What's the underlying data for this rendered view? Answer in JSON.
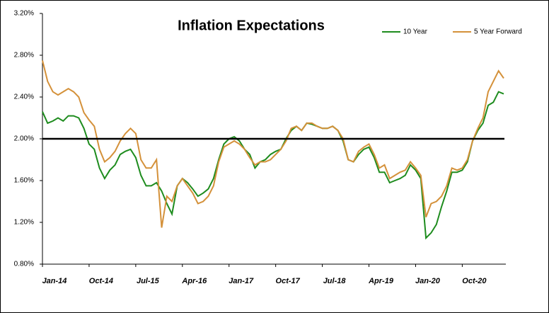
{
  "chart_data": {
    "type": "line",
    "title": "Inflation  Expectations",
    "categories": [
      "Jan-14",
      null,
      null,
      null,
      null,
      null,
      null,
      null,
      null,
      "Oct-14",
      null,
      null,
      null,
      null,
      null,
      null,
      null,
      null,
      "Jul-15",
      null,
      null,
      null,
      null,
      null,
      null,
      null,
      null,
      "Apr-16",
      null,
      null,
      null,
      null,
      null,
      null,
      null,
      null,
      "Jan-17",
      null,
      null,
      null,
      null,
      null,
      null,
      null,
      null,
      "Oct-17",
      null,
      null,
      null,
      null,
      null,
      null,
      null,
      null,
      "Jul-18",
      null,
      null,
      null,
      null,
      null,
      null,
      null,
      null,
      "Apr-19",
      null,
      null,
      null,
      null,
      null,
      null,
      null,
      null,
      "Jan-20",
      null,
      null,
      null,
      null,
      null,
      null,
      null,
      null,
      "Oct-20",
      null,
      null,
      null,
      null,
      null,
      null,
      null,
      null
    ],
    "series": [
      {
        "name": "10 Year",
        "color": "#1e8c1e",
        "values": [
          2.26,
          2.15,
          2.17,
          2.2,
          2.17,
          2.22,
          2.22,
          2.2,
          2.1,
          1.95,
          1.9,
          1.72,
          1.62,
          1.7,
          1.75,
          1.85,
          1.88,
          1.9,
          1.82,
          1.65,
          1.55,
          1.55,
          1.58,
          1.5,
          1.38,
          1.28,
          1.55,
          1.62,
          1.58,
          1.52,
          1.45,
          1.48,
          1.52,
          1.62,
          1.8,
          1.95,
          2.0,
          2.02,
          1.98,
          1.9,
          1.85,
          1.72,
          1.78,
          1.8,
          1.85,
          1.88,
          1.9,
          2.0,
          2.08,
          2.12,
          2.08,
          2.15,
          2.14,
          2.12,
          2.1,
          2.1,
          2.12,
          2.08,
          1.98,
          1.8,
          1.78,
          1.85,
          1.9,
          1.92,
          1.82,
          1.68,
          1.68,
          1.58,
          1.6,
          1.62,
          1.65,
          1.75,
          1.7,
          1.62,
          1.05,
          1.1,
          1.18,
          1.35,
          1.5,
          1.68,
          1.68,
          1.7,
          1.78,
          1.98,
          2.08,
          2.15,
          2.32,
          2.35,
          2.45,
          2.43
        ]
      },
      {
        "name": "5 Year Forward",
        "color": "#d4913a",
        "values": [
          2.75,
          2.55,
          2.45,
          2.42,
          2.45,
          2.48,
          2.45,
          2.4,
          2.25,
          2.18,
          2.12,
          1.9,
          1.78,
          1.82,
          1.88,
          1.98,
          2.05,
          2.1,
          2.05,
          1.8,
          1.72,
          1.72,
          1.8,
          1.15,
          1.45,
          1.4,
          1.55,
          1.62,
          1.55,
          1.48,
          1.38,
          1.4,
          1.45,
          1.55,
          1.78,
          1.92,
          1.95,
          1.98,
          1.95,
          1.9,
          1.82,
          1.75,
          1.78,
          1.78,
          1.8,
          1.85,
          1.9,
          1.98,
          2.1,
          2.12,
          2.08,
          2.15,
          2.15,
          2.12,
          2.1,
          2.1,
          2.12,
          2.08,
          2.0,
          1.8,
          1.78,
          1.88,
          1.92,
          1.95,
          1.85,
          1.72,
          1.75,
          1.62,
          1.65,
          1.68,
          1.7,
          1.78,
          1.72,
          1.65,
          1.25,
          1.38,
          1.4,
          1.45,
          1.55,
          1.72,
          1.7,
          1.72,
          1.8,
          1.98,
          2.1,
          2.2,
          2.45,
          2.55,
          2.65,
          2.58
        ]
      }
    ],
    "ylim": [
      0.8,
      3.2
    ],
    "yticks": [
      {
        "value": 0.8,
        "label": "0.80%"
      },
      {
        "value": 1.2,
        "label": "1.20%"
      },
      {
        "value": 1.6,
        "label": "1.60%"
      },
      {
        "value": 2.0,
        "label": "2.00%"
      },
      {
        "value": 2.4,
        "label": "2.40%"
      },
      {
        "value": 2.8,
        "label": "2.80%"
      },
      {
        "value": 3.2,
        "label": "3.20%"
      }
    ],
    "hline": 2.0,
    "grid": false,
    "legend": "top-right"
  }
}
